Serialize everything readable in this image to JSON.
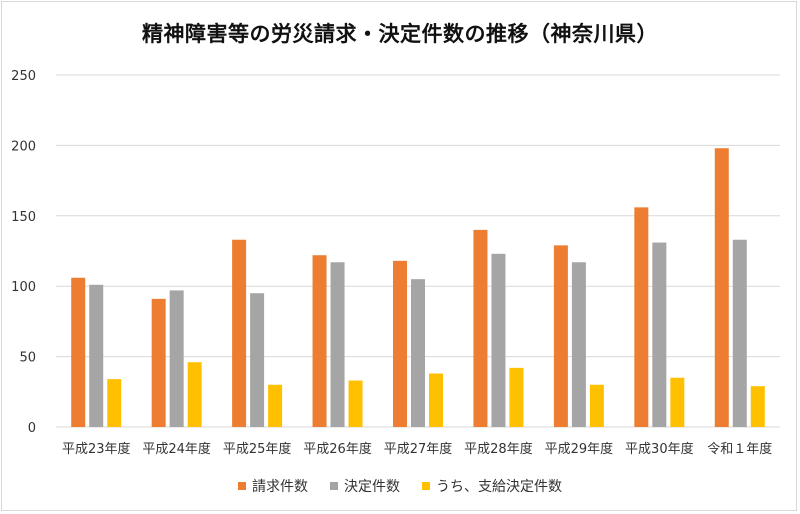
{
  "chart_data": {
    "type": "bar",
    "title": "精神障害等の労災請求・決定件数の推移（神奈川県）",
    "categories": [
      "平成23年度",
      "平成24年度",
      "平成25年度",
      "平成26年度",
      "平成27年度",
      "平成28年度",
      "平成29年度",
      "平成30年度",
      "令和１年度"
    ],
    "series": [
      {
        "name": "請求件数",
        "color": "#ED7D31",
        "values": [
          106,
          91,
          133,
          122,
          118,
          140,
          129,
          156,
          198
        ]
      },
      {
        "name": "決定件数",
        "color": "#A5A5A5",
        "values": [
          101,
          97,
          95,
          117,
          105,
          123,
          117,
          131,
          133
        ]
      },
      {
        "name": "うち、支給決定件数",
        "color": "#FFC000",
        "values": [
          34,
          46,
          30,
          33,
          38,
          42,
          30,
          35,
          29
        ]
      }
    ],
    "ylim": [
      0,
      250
    ],
    "yticks": [
      0,
      50,
      100,
      150,
      200,
      250
    ],
    "grid": true,
    "legend_position": "bottom"
  }
}
